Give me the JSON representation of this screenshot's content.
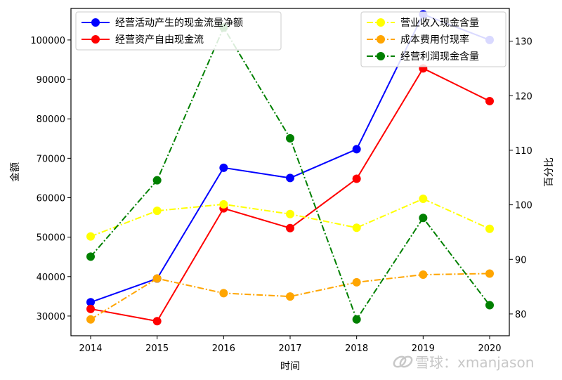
{
  "chart_data": {
    "type": "line",
    "x": [
      "2014",
      "2015",
      "2016",
      "2017",
      "2018",
      "2019",
      "2020"
    ],
    "xlabel": "时间",
    "ylabel": "金额",
    "y2label": "百分比",
    "ylim": [
      25000,
      108000
    ],
    "y2lim": [
      76,
      136
    ],
    "yticks": [
      30000,
      40000,
      50000,
      60000,
      70000,
      80000,
      90000,
      100000
    ],
    "y2ticks": [
      80,
      90,
      100,
      110,
      120,
      130
    ],
    "grid": false,
    "legend_left_position": "top-left",
    "legend_right_position": "top-right",
    "series_left": [
      {
        "name": "经营活动产生的现金流量净额",
        "color": "#0000ff",
        "style": "solid",
        "values": [
          33500,
          39500,
          67600,
          65000,
          72300,
          106500,
          100000
        ]
      },
      {
        "name": "经营资产自由现金流",
        "color": "#ff0000",
        "style": "solid",
        "values": [
          31800,
          28700,
          57300,
          52300,
          64800,
          92800,
          84500
        ]
      }
    ],
    "series_right": [
      {
        "name": "营业收入现金含量",
        "color": "#ffff00",
        "style": "dashdot",
        "values": [
          94.2,
          98.9,
          100.1,
          98.3,
          95.8,
          101.1,
          95.6
        ]
      },
      {
        "name": "成本费用付现率",
        "color": "#ffa500",
        "style": "dashdot",
        "values": [
          79.0,
          86.5,
          83.8,
          83.2,
          85.8,
          87.2,
          87.4
        ]
      },
      {
        "name": "经营利润现金含量",
        "color": "#008000",
        "style": "dashdot",
        "values": [
          90.5,
          104.5,
          132.5,
          112.2,
          79.0,
          97.6,
          81.6
        ]
      }
    ]
  },
  "watermark": "雪球：xmanjason"
}
